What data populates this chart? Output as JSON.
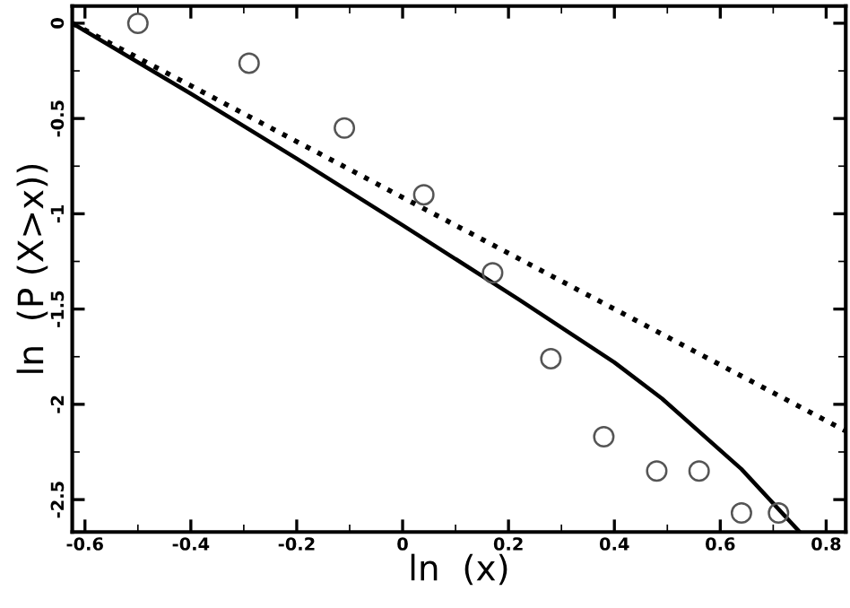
{
  "chart_data": {
    "type": "scatter",
    "xlabel": "ln  (x)",
    "ylabel": "ln  (P (X>x))",
    "xlim": [
      -0.624,
      0.837
    ],
    "ylim": [
      -2.67,
      0.09
    ],
    "xticks": [
      -0.6,
      -0.4,
      -0.2,
      0,
      0.2,
      0.4,
      0.6,
      0.8
    ],
    "yticks": [
      -2.5,
      -2,
      -1.5,
      -1,
      -0.5,
      0
    ],
    "grid": false,
    "legend": false,
    "series": [
      {
        "color": "#555555",
        "marker": "circle",
        "x": [
          -0.5,
          -0.29,
          -0.11,
          0.04,
          0.17,
          0.28,
          0.38,
          0.48,
          0.56,
          0.64,
          0.71
        ],
        "values": [
          0,
          -0.21,
          -0.55,
          -0.9,
          -1.31,
          -1.76,
          -2.17,
          -2.35,
          -2.35,
          -2.57,
          -2.57
        ]
      },
      {
        "type": "line",
        "color": "#000000",
        "line_style": "solid",
        "x": [
          -0.624,
          -0.4,
          -0.2,
          0,
          0.22,
          0.4,
          0.49,
          0.64,
          0.75
        ],
        "values": [
          0,
          -0.37,
          -0.71,
          -1.06,
          -1.45,
          -1.78,
          -1.97,
          -2.34,
          -2.67
        ]
      },
      {
        "type": "line",
        "color": "#000000",
        "line_style": "dotted",
        "x": [
          -0.624,
          0.837
        ],
        "values": [
          0,
          -2.14
        ]
      }
    ]
  }
}
